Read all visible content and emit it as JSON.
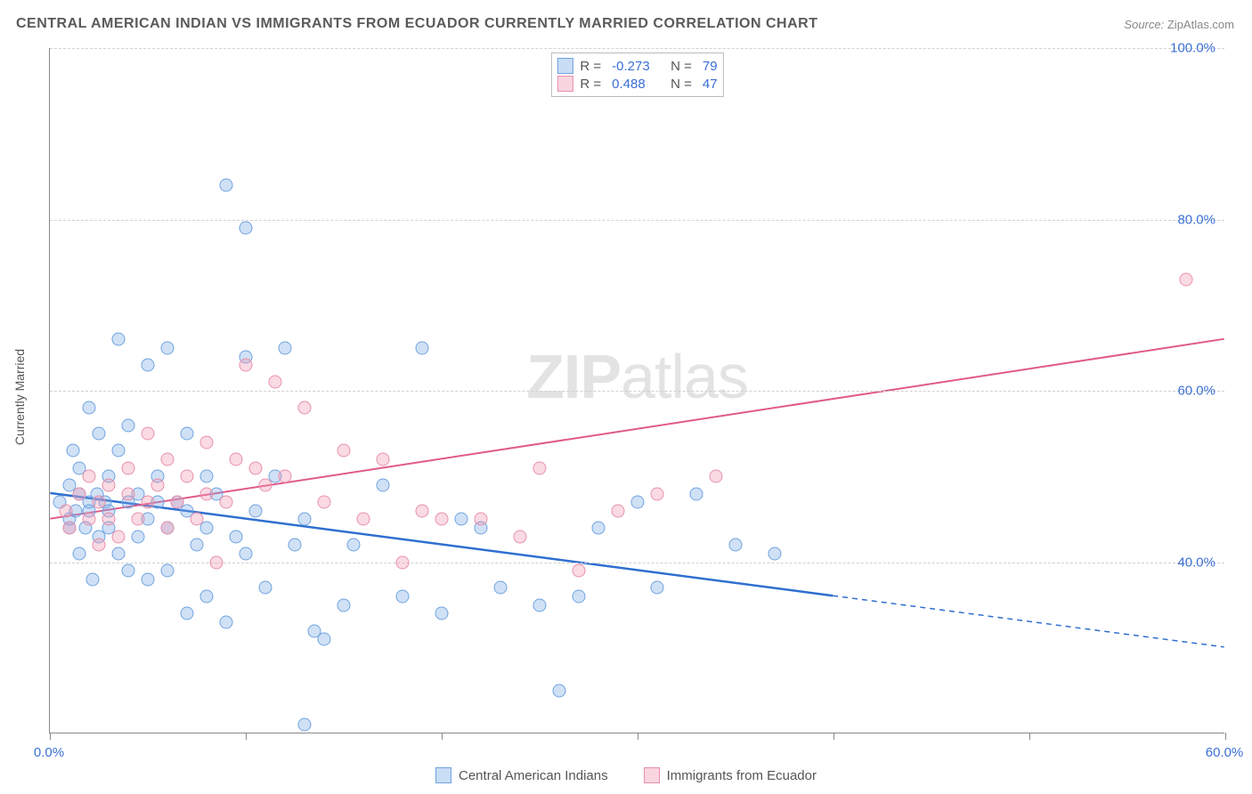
{
  "title": "CENTRAL AMERICAN INDIAN VS IMMIGRANTS FROM ECUADOR CURRENTLY MARRIED CORRELATION CHART",
  "source_label": "Source:",
  "source_value": "ZipAtlas.com",
  "ylabel": "Currently Married",
  "watermark_bold": "ZIP",
  "watermark_rest": "atlas",
  "chart": {
    "type": "scatter-with-regression",
    "xlim": [
      0,
      60
    ],
    "ylim": [
      20,
      100
    ],
    "x_ticks": [
      0,
      10,
      20,
      30,
      40,
      50,
      60
    ],
    "x_tick_labels": {
      "0": "0.0%",
      "60": "60.0%"
    },
    "y_ticks": [
      40,
      60,
      80,
      100
    ],
    "y_tick_labels": {
      "40": "40.0%",
      "60": "60.0%",
      "80": "80.0%",
      "100": "100.0%"
    },
    "grid_color": "#d0d0d0",
    "axis_color": "#888888",
    "background_color": "#ffffff",
    "marker_radius": 7.5,
    "series": [
      {
        "name": "Central American Indians",
        "color_fill": "rgba(120,170,230,0.35)",
        "color_stroke": "#6fa3e0",
        "line_color": "#2f6fd0",
        "line_width": 2.5,
        "R": "-0.273",
        "N": "79",
        "regression": {
          "x1": 0,
          "y1": 48,
          "x2": 40,
          "y2": 36,
          "extrap_x2": 60,
          "extrap_y2": 30
        },
        "points": [
          [
            0.5,
            47
          ],
          [
            1,
            45
          ],
          [
            1,
            49
          ],
          [
            1,
            44
          ],
          [
            1.2,
            53
          ],
          [
            1.3,
            46
          ],
          [
            1.5,
            48
          ],
          [
            1.5,
            41
          ],
          [
            1.5,
            51
          ],
          [
            1.8,
            44
          ],
          [
            2,
            46
          ],
          [
            2,
            58
          ],
          [
            2,
            47
          ],
          [
            2.2,
            38
          ],
          [
            2.4,
            48
          ],
          [
            2.5,
            55
          ],
          [
            2.5,
            43
          ],
          [
            2.8,
            47
          ],
          [
            3,
            46
          ],
          [
            3,
            50
          ],
          [
            3,
            44
          ],
          [
            3.5,
            66
          ],
          [
            3.5,
            41
          ],
          [
            3.5,
            53
          ],
          [
            4,
            56
          ],
          [
            4,
            47
          ],
          [
            4,
            39
          ],
          [
            4.5,
            43
          ],
          [
            4.5,
            48
          ],
          [
            5,
            45
          ],
          [
            5,
            63
          ],
          [
            5,
            38
          ],
          [
            5.5,
            47
          ],
          [
            5.5,
            50
          ],
          [
            6,
            65
          ],
          [
            6,
            44
          ],
          [
            6,
            39
          ],
          [
            6.5,
            47
          ],
          [
            7,
            46
          ],
          [
            7,
            34
          ],
          [
            7,
            55
          ],
          [
            7.5,
            42
          ],
          [
            8,
            44
          ],
          [
            8,
            50
          ],
          [
            8,
            36
          ],
          [
            8.5,
            48
          ],
          [
            9,
            33
          ],
          [
            9,
            84
          ],
          [
            9.5,
            43
          ],
          [
            10,
            79
          ],
          [
            10,
            41
          ],
          [
            10,
            64
          ],
          [
            10.5,
            46
          ],
          [
            11,
            37
          ],
          [
            11.5,
            50
          ],
          [
            12,
            65
          ],
          [
            12.5,
            42
          ],
          [
            13,
            45
          ],
          [
            13,
            21
          ],
          [
            13.5,
            32
          ],
          [
            14,
            31
          ],
          [
            15,
            35
          ],
          [
            15.5,
            42
          ],
          [
            17,
            49
          ],
          [
            18,
            36
          ],
          [
            19,
            65
          ],
          [
            20,
            34
          ],
          [
            21,
            45
          ],
          [
            22,
            44
          ],
          [
            23,
            37
          ],
          [
            25,
            35
          ],
          [
            26,
            25
          ],
          [
            27,
            36
          ],
          [
            28,
            44
          ],
          [
            30,
            47
          ],
          [
            31,
            37
          ],
          [
            33,
            48
          ],
          [
            35,
            42
          ],
          [
            37,
            41
          ]
        ]
      },
      {
        "name": "Immigrants from Ecuador",
        "color_fill": "rgba(240,150,175,0.35)",
        "color_stroke": "#e890aa",
        "line_color": "#e05a8a",
        "line_width": 2,
        "R": "0.488",
        "N": "47",
        "regression": {
          "x1": 0,
          "y1": 45,
          "x2": 60,
          "y2": 66
        },
        "points": [
          [
            0.8,
            46
          ],
          [
            1,
            44
          ],
          [
            1.5,
            48
          ],
          [
            2,
            45
          ],
          [
            2,
            50
          ],
          [
            2.5,
            42
          ],
          [
            2.5,
            47
          ],
          [
            3,
            45
          ],
          [
            3,
            49
          ],
          [
            3.5,
            43
          ],
          [
            4,
            48
          ],
          [
            4,
            51
          ],
          [
            4.5,
            45
          ],
          [
            5,
            55
          ],
          [
            5,
            47
          ],
          [
            5.5,
            49
          ],
          [
            6,
            44
          ],
          [
            6,
            52
          ],
          [
            6.5,
            47
          ],
          [
            7,
            50
          ],
          [
            7.5,
            45
          ],
          [
            8,
            54
          ],
          [
            8,
            48
          ],
          [
            8.5,
            40
          ],
          [
            9,
            47
          ],
          [
            9.5,
            52
          ],
          [
            10,
            63
          ],
          [
            10.5,
            51
          ],
          [
            11,
            49
          ],
          [
            11.5,
            61
          ],
          [
            12,
            50
          ],
          [
            13,
            58
          ],
          [
            14,
            47
          ],
          [
            15,
            53
          ],
          [
            16,
            45
          ],
          [
            17,
            52
          ],
          [
            18,
            40
          ],
          [
            19,
            46
          ],
          [
            20,
            45
          ],
          [
            22,
            45
          ],
          [
            24,
            43
          ],
          [
            25,
            51
          ],
          [
            27,
            39
          ],
          [
            29,
            46
          ],
          [
            31,
            48
          ],
          [
            34,
            50
          ],
          [
            58,
            73
          ]
        ]
      }
    ]
  },
  "bottom_legend": [
    {
      "swatch": "blue",
      "label": "Central American Indians"
    },
    {
      "swatch": "pink",
      "label": "Immigrants from Ecuador"
    }
  ]
}
